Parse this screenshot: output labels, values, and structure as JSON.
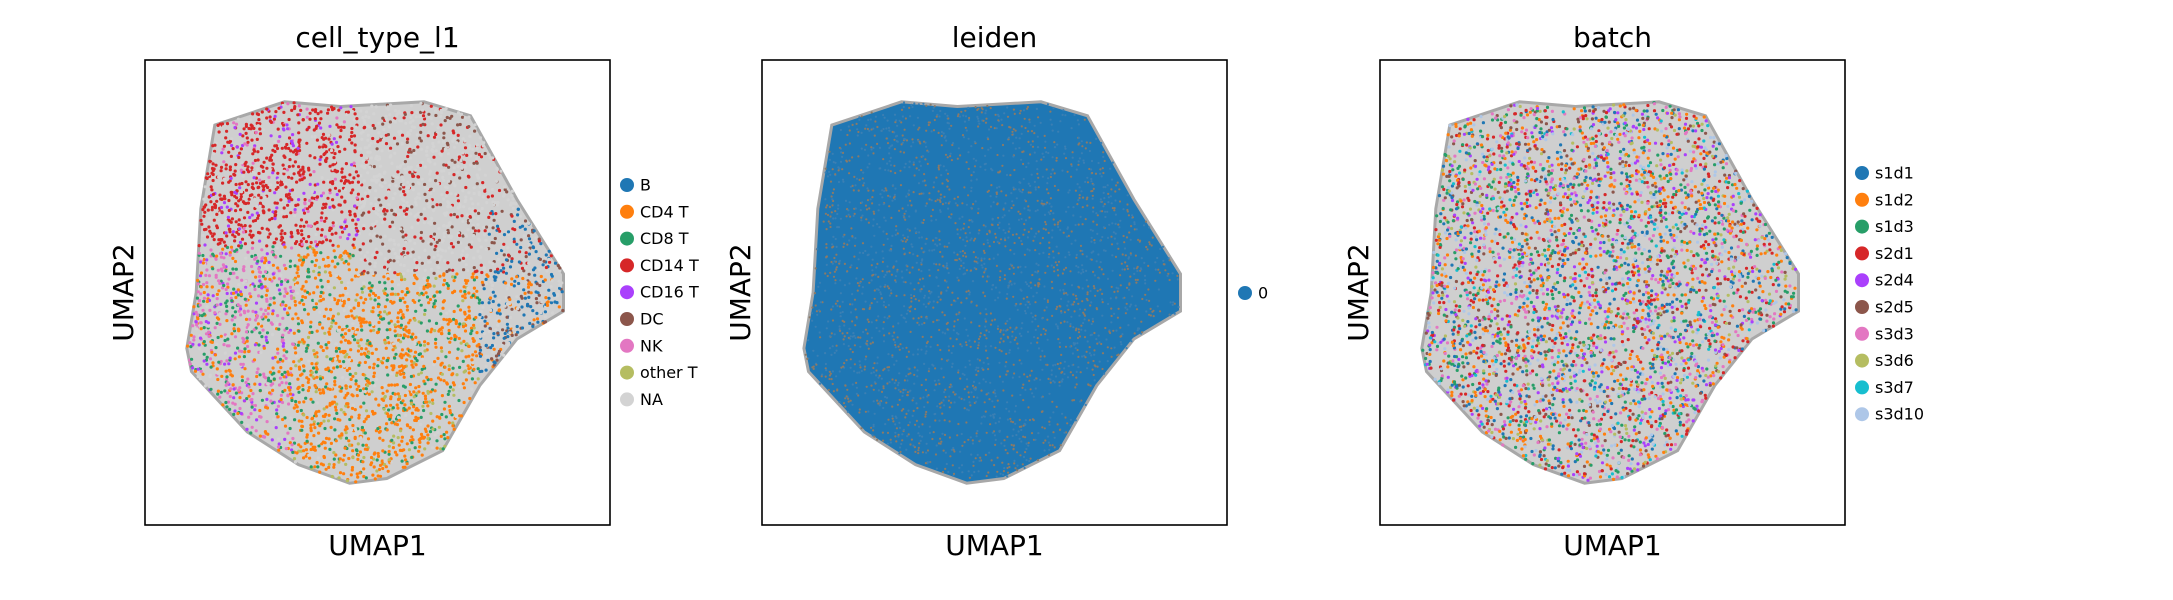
{
  "chart_data": [
    {
      "type": "scatter",
      "title": "cell_type_l1",
      "xlabel": "UMAP1",
      "ylabel": "UMAP2",
      "grid": false,
      "legend_position": "right",
      "series": [
        {
          "name": "B",
          "color": "#1f77b4"
        },
        {
          "name": "CD4 T",
          "color": "#ff7f0e"
        },
        {
          "name": "CD8 T",
          "color": "#279e68"
        },
        {
          "name": "CD14 T",
          "color": "#d62728"
        },
        {
          "name": "CD16 T",
          "color": "#aa40fc"
        },
        {
          "name": "DC",
          "color": "#8c564b"
        },
        {
          "name": "NK",
          "color": "#e377c2"
        },
        {
          "name": "other T",
          "color": "#b5bd61"
        },
        {
          "name": "NA",
          "color": "#d3d3d3"
        }
      ]
    },
    {
      "type": "scatter",
      "title": "leiden",
      "xlabel": "UMAP1",
      "ylabel": "UMAP2",
      "grid": false,
      "legend_position": "right",
      "series": [
        {
          "name": "0",
          "color": "#1f77b4"
        }
      ]
    },
    {
      "type": "scatter",
      "title": "batch",
      "xlabel": "UMAP1",
      "ylabel": "UMAP2",
      "grid": false,
      "legend_position": "right",
      "series": [
        {
          "name": "s1d1",
          "color": "#1f77b4"
        },
        {
          "name": "s1d2",
          "color": "#ff7f0e"
        },
        {
          "name": "s1d3",
          "color": "#279e68"
        },
        {
          "name": "s2d1",
          "color": "#d62728"
        },
        {
          "name": "s2d4",
          "color": "#aa40fc"
        },
        {
          "name": "s2d5",
          "color": "#8c564b"
        },
        {
          "name": "s3d3",
          "color": "#e377c2"
        },
        {
          "name": "s3d6",
          "color": "#b5bd61"
        },
        {
          "name": "s3d7",
          "color": "#17becf"
        },
        {
          "name": "s3d10",
          "color": "#aec7e8"
        }
      ]
    }
  ]
}
